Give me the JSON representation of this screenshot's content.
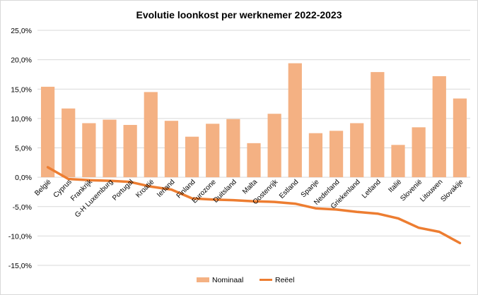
{
  "chart_data": {
    "type": "bar",
    "title": "Evolutie loonkost per werknemer 2022-2023",
    "categories": [
      "België",
      "Cyprus",
      "Frankrijk",
      "G-H Luxemburg",
      "Portugal",
      "Kroatië",
      "Ierland",
      "Finland",
      "Eurozone",
      "Duitsland",
      "Malta",
      "Oostenrijk",
      "Estland",
      "Spanje",
      "Nederland",
      "Griekenland",
      "Letland",
      "Italië",
      "Slovenië",
      "Litouwen",
      "Slovakije"
    ],
    "y_ticks": [
      "25,0%",
      "20,0%",
      "15,0%",
      "10,0%",
      "5,0%",
      "0,0%",
      "-5,0%",
      "-10,0%",
      "-15,0%"
    ],
    "ylim": [
      -15,
      25
    ],
    "grid": true,
    "legend_position": "bottom",
    "series": [
      {
        "name": "Nominaal",
        "type": "bar",
        "color": "#f4b183",
        "values": [
          15.4,
          11.7,
          9.2,
          9.8,
          8.9,
          14.5,
          9.6,
          6.9,
          9.1,
          9.9,
          5.8,
          10.8,
          19.4,
          7.5,
          7.9,
          9.2,
          17.9,
          5.5,
          8.5,
          17.2,
          13.4
        ]
      },
      {
        "name": "Reëel",
        "type": "line",
        "color": "#ed7d31",
        "values": [
          1.7,
          -0.3,
          -0.5,
          -0.6,
          -0.8,
          -1.6,
          -2.1,
          -3.6,
          -3.8,
          -3.9,
          -4.1,
          -4.2,
          -4.5,
          -5.3,
          -5.5,
          -5.9,
          -6.2,
          -7.0,
          -8.6,
          -9.3,
          -11.2
        ]
      }
    ]
  }
}
